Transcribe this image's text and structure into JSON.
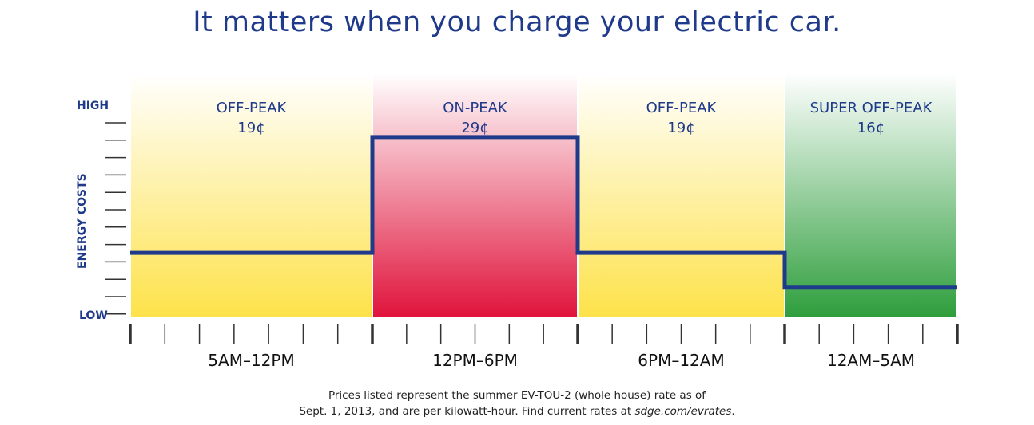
{
  "title": "It matters when you charge your electric car.",
  "chart_data": {
    "type": "step",
    "ylabel": "ENERGY COSTS",
    "y_high_label": "HIGH",
    "y_low_label": "LOW",
    "periods": [
      {
        "name": "OFF-PEAK",
        "price": "19¢",
        "time": "5AM–12PM",
        "value": 19,
        "color": "#fde24a"
      },
      {
        "name": "ON-PEAK",
        "price": "29¢",
        "time": "12PM–6PM",
        "value": 29,
        "color": "#e0143c"
      },
      {
        "name": "OFF-PEAK",
        "price": "19¢",
        "time": "6PM–12AM",
        "value": 19,
        "color": "#fde24a"
      },
      {
        "name": "SUPER OFF-PEAK",
        "price": "16¢",
        "time": "12AM–5AM",
        "value": 16,
        "color": "#2e9e3c"
      }
    ],
    "line_color": "#1f3a8a"
  },
  "footnote": {
    "line1": "Prices listed represent the summer EV-TOU-2 (whole house) rate as of",
    "line2_pre": "Sept. 1, 2013, and are per kilowatt-hour. Find current rates at ",
    "line2_link": "sdge.com/evrates",
    "line2_post": "."
  }
}
